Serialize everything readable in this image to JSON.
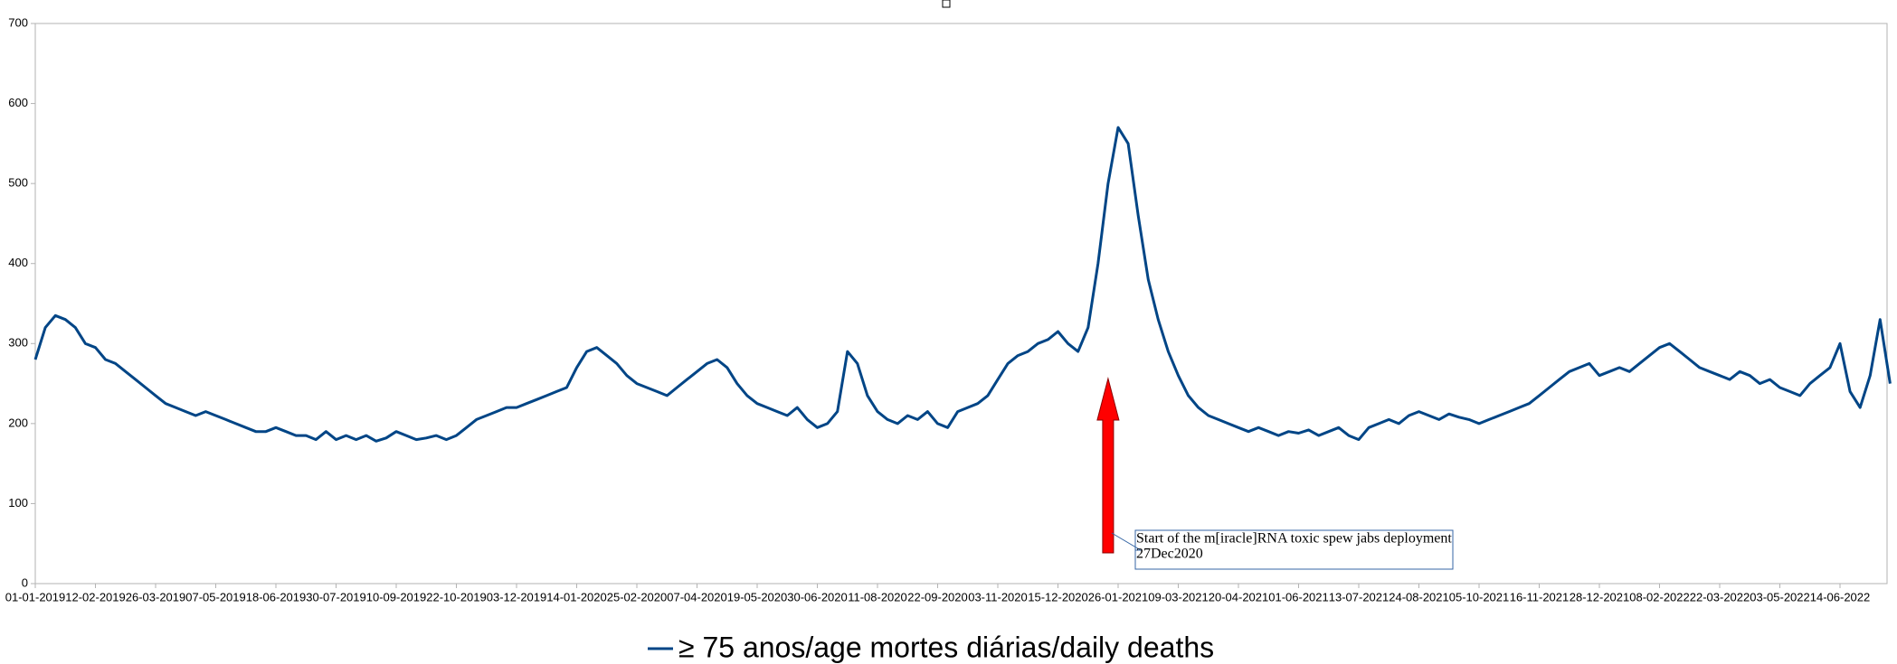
{
  "chart_data": {
    "type": "line",
    "categories": [
      "01-01-2019",
      null,
      null,
      null,
      null,
      null,
      "12-02-2019",
      null,
      null,
      null,
      null,
      null,
      "26-03-2019",
      null,
      null,
      null,
      null,
      null,
      "07-05-2019",
      null,
      null,
      null,
      null,
      null,
      "18-06-2019",
      null,
      null,
      null,
      null,
      null,
      "30-07-2019",
      null,
      null,
      null,
      null,
      null,
      "10-09-2019",
      null,
      null,
      null,
      null,
      null,
      "22-10-2019",
      null,
      null,
      null,
      null,
      null,
      "03-12-2019",
      null,
      null,
      null,
      null,
      null,
      "14-01-2020",
      null,
      null,
      null,
      null,
      null,
      "25-02-2020",
      null,
      null,
      null,
      null,
      null,
      "07-04-2020",
      null,
      null,
      null,
      null,
      null,
      "19-05-2020",
      null,
      null,
      null,
      null,
      null,
      "30-06-2020",
      null,
      null,
      null,
      null,
      null,
      "11-08-2020",
      null,
      null,
      null,
      null,
      null,
      "22-09-2020",
      null,
      null,
      null,
      null,
      null,
      "03-11-2020",
      null,
      null,
      null,
      null,
      null,
      "15-12-2020",
      null,
      null,
      null,
      null,
      null,
      "26-01-2021",
      null,
      null,
      null,
      null,
      null,
      "09-03-2021",
      null,
      null,
      null,
      null,
      null,
      "20-04-2021",
      null,
      null,
      null,
      null,
      null,
      "01-06-2021",
      null,
      null,
      null,
      null,
      null,
      "13-07-2021",
      null,
      null,
      null,
      null,
      null,
      "24-08-2021",
      null,
      null,
      null,
      null,
      null,
      "05-10-2021",
      null,
      null,
      null,
      null,
      null,
      "16-11-2021",
      null,
      null,
      null,
      null,
      null,
      "28-12-2021",
      null,
      null,
      null,
      null,
      null,
      "08-02-2022",
      null,
      null,
      null,
      null,
      null,
      "22-03-2022",
      null,
      null,
      null,
      null,
      null,
      "03-05-2022",
      null,
      null,
      null,
      null,
      null,
      "14-06-2022",
      null,
      null,
      null,
      null,
      null
    ],
    "series": [
      {
        "name": "≥ 75 anos/age mortes diárias/daily deaths",
        "color": "#004586",
        "values": [
          280,
          320,
          335,
          330,
          320,
          300,
          295,
          280,
          275,
          265,
          255,
          245,
          235,
          225,
          220,
          215,
          210,
          215,
          210,
          205,
          200,
          195,
          190,
          190,
          195,
          190,
          185,
          185,
          180,
          190,
          180,
          185,
          180,
          185,
          178,
          182,
          190,
          185,
          180,
          182,
          185,
          180,
          185,
          195,
          205,
          210,
          215,
          220,
          220,
          225,
          230,
          235,
          240,
          245,
          270,
          290,
          295,
          285,
          275,
          260,
          250,
          245,
          240,
          235,
          245,
          255,
          265,
          275,
          280,
          270,
          250,
          235,
          225,
          220,
          215,
          210,
          220,
          205,
          195,
          200,
          215,
          290,
          275,
          235,
          215,
          205,
          200,
          210,
          205,
          215,
          200,
          195,
          215,
          220,
          225,
          235,
          255,
          275,
          285,
          290,
          300,
          305,
          315,
          300,
          290,
          320,
          400,
          500,
          570,
          550,
          460,
          380,
          330,
          290,
          260,
          235,
          220,
          210,
          205,
          200,
          195,
          190,
          195,
          190,
          185,
          190,
          188,
          192,
          185,
          190,
          195,
          185,
          180,
          195,
          200,
          205,
          200,
          210,
          215,
          210,
          205,
          212,
          208,
          205,
          200,
          205,
          210,
          215,
          220,
          225,
          235,
          245,
          255,
          265,
          270,
          275,
          260,
          265,
          270,
          265,
          275,
          285,
          295,
          300,
          290,
          280,
          270,
          265,
          260,
          255,
          265,
          260,
          250,
          255,
          245,
          240,
          235,
          250,
          260,
          270,
          300,
          240,
          220,
          260,
          330,
          250
        ]
      }
    ],
    "ylim": [
      0,
      700
    ],
    "yticks": [
      0,
      100,
      200,
      300,
      400,
      500,
      600,
      700
    ],
    "annotation": {
      "lines": [
        "Start of the m[iracle]RNA toxic spew jabs deployment",
        "27Dec2020"
      ],
      "category_index": 107,
      "color": "#ff0000"
    },
    "legend": "bottom"
  }
}
